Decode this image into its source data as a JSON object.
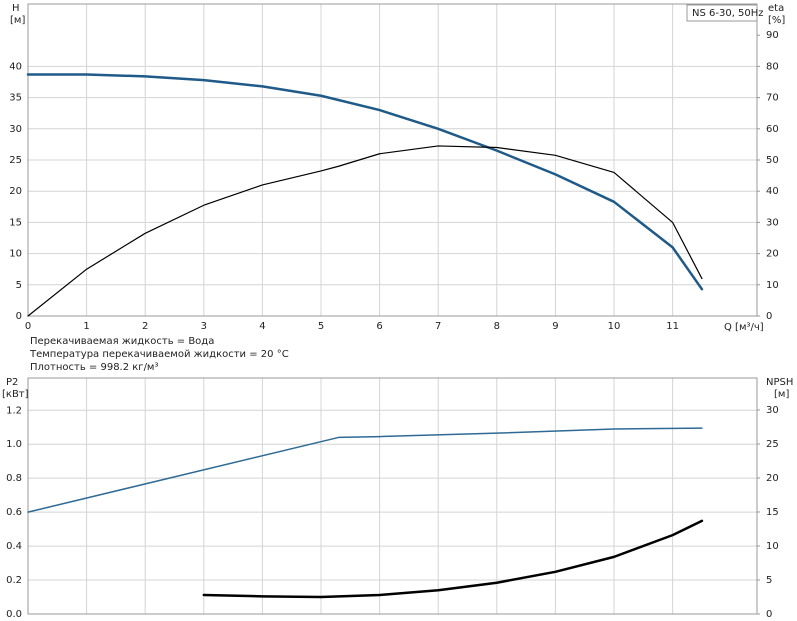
{
  "chart_data": [
    {
      "type": "line",
      "title": "NS 6-30, 50Hz",
      "ylabel": "H",
      "yunit": "[м]",
      "y2label": "eta",
      "y2unit": "[%]",
      "xlabel": "Q [м³/ч]",
      "notes": [
        "Перекачиваемая жидкость = Вода",
        "Температура перекачиваемой жидкости = 20 °C",
        "Плотность = 998.2 кг/м³"
      ],
      "xlim": [
        0,
        12.44
      ],
      "xticks": [
        0,
        1,
        2,
        3,
        4,
        5,
        6,
        7,
        8,
        9,
        10,
        11
      ],
      "ylim": [
        0,
        50
      ],
      "yticks": [
        0,
        5,
        10,
        15,
        20,
        25,
        30,
        35,
        40
      ],
      "y2lim": [
        0,
        100
      ],
      "y2ticks": [
        0,
        10,
        20,
        30,
        40,
        50,
        60,
        70,
        80,
        90
      ],
      "grid": true,
      "series": [
        {
          "color": "#1f5a88",
          "width": 2.5,
          "x": [
            0,
            1,
            2,
            3,
            4,
            5,
            6,
            7,
            8,
            9,
            10,
            11,
            11.5
          ],
          "values": [
            38.7,
            38.7,
            38.4,
            37.8,
            36.8,
            35.3,
            33.0,
            30.0,
            26.5,
            22.7,
            18.3,
            11.0,
            4.3
          ]
        },
        {
          "color": "#000000",
          "width": 1.2,
          "axis": "y2",
          "x": [
            0,
            1,
            2,
            3,
            4,
            5,
            5.3,
            6,
            7,
            8,
            9,
            10,
            11,
            11.5
          ],
          "values": [
            0,
            15,
            26.5,
            35.5,
            42,
            46.5,
            48,
            52,
            54.5,
            54,
            51.5,
            46,
            30,
            12
          ]
        }
      ]
    },
    {
      "type": "line",
      "ylabel": "P2",
      "yunit": "[кВт]",
      "y2label": "NPSH",
      "y2unit": "[м]",
      "xlim": [
        0,
        12.44
      ],
      "ylim": [
        0,
        1.39
      ],
      "yticks": [
        {
          "value": 0,
          "label": "0.0"
        },
        0.2,
        0.4,
        0.6,
        0.8,
        {
          "value": 1,
          "label": "1.0"
        },
        1.2
      ],
      "y2lim": [
        0,
        34.7
      ],
      "y2ticks": [
        0,
        5,
        10,
        15,
        20,
        25,
        30
      ],
      "grid": true,
      "series": [
        {
          "color": "#2e6a94",
          "width": 1.5,
          "x": [
            0,
            5.3,
            6,
            8,
            10,
            11.5
          ],
          "values": [
            0.6,
            1.04,
            1.045,
            1.065,
            1.09,
            1.095
          ]
        },
        {
          "color": "#000000",
          "width": 2.5,
          "axis": "y2",
          "x": [
            3,
            4,
            5,
            6,
            7,
            8,
            9,
            10,
            11,
            11.5
          ],
          "values": [
            2.8,
            2.6,
            2.5,
            2.8,
            3.5,
            4.6,
            6.2,
            8.4,
            11.6,
            13.7
          ]
        }
      ]
    }
  ]
}
